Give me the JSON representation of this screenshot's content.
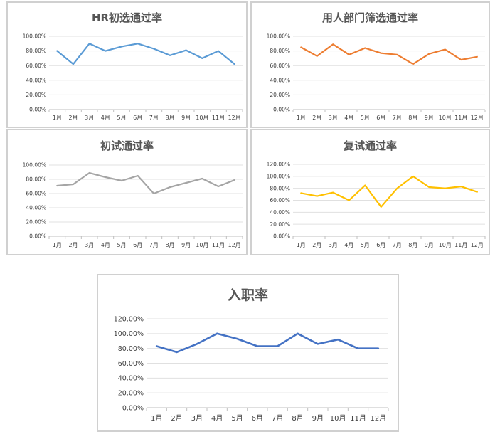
{
  "chart_data": [
    {
      "type": "line",
      "title": "HR初选通过率",
      "categories": [
        "1月",
        "2月",
        "3月",
        "4月",
        "5月",
        "6月",
        "7月",
        "8月",
        "9月",
        "10月",
        "11月",
        "12月"
      ],
      "series": [
        {
          "values": [
            80,
            62,
            90,
            80,
            86,
            90,
            83,
            74,
            81,
            70,
            80,
            62
          ]
        }
      ],
      "yticks": [
        "0.00%",
        "20.00%",
        "40.00%",
        "60.00%",
        "80.00%",
        "100.00%"
      ],
      "ylim": [
        0,
        100
      ],
      "grid": true,
      "color": "#5b9bd5"
    },
    {
      "type": "line",
      "title": "用人部门筛选通过率",
      "categories": [
        "1月",
        "2月",
        "3月",
        "4月",
        "5月",
        "6月",
        "7月",
        "8月",
        "9月",
        "10月",
        "11月",
        "12月"
      ],
      "series": [
        {
          "values": [
            85,
            73,
            89,
            75,
            84,
            77,
            75,
            62,
            76,
            82,
            68,
            72
          ]
        }
      ],
      "yticks": [
        "0.00%",
        "20.00%",
        "40.00%",
        "60.00%",
        "80.00%",
        "100.00%"
      ],
      "ylim": [
        0,
        100
      ],
      "grid": true,
      "color": "#ed7d31"
    },
    {
      "type": "line",
      "title": "初试通过率",
      "categories": [
        "1月",
        "2月",
        "3月",
        "4月",
        "5月",
        "6月",
        "7月",
        "8月",
        "9月",
        "10月",
        "11月",
        "12月"
      ],
      "series": [
        {
          "values": [
            71,
            73,
            89,
            83,
            78,
            85,
            60,
            69,
            75,
            81,
            70,
            79
          ]
        }
      ],
      "yticks": [
        "0.00%",
        "20.00%",
        "40.00%",
        "60.00%",
        "80.00%",
        "100.00%"
      ],
      "ylim": [
        0,
        100
      ],
      "grid": true,
      "color": "#a5a5a5"
    },
    {
      "type": "line",
      "title": "复试通过率",
      "categories": [
        "1月",
        "2月",
        "3月",
        "4月",
        "5月",
        "6月",
        "7月",
        "8月",
        "9月",
        "10月",
        "11月",
        "12月"
      ],
      "series": [
        {
          "values": [
            72,
            67,
            73,
            60,
            85,
            49,
            80,
            100,
            82,
            80,
            83,
            74
          ]
        }
      ],
      "yticks": [
        "0.00%",
        "20.00%",
        "40.00%",
        "60.00%",
        "80.00%",
        "100.00%",
        "120.00%"
      ],
      "ylim": [
        0,
        120
      ],
      "grid": true,
      "color": "#ffc000"
    },
    {
      "type": "line",
      "title": "入职率",
      "categories": [
        "1月",
        "2月",
        "3月",
        "4月",
        "5月",
        "6月",
        "7月",
        "8月",
        "9月",
        "10月",
        "11月",
        "12月"
      ],
      "series": [
        {
          "values": [
            83,
            75,
            86,
            100,
            93,
            83,
            83,
            100,
            86,
            92,
            80,
            80
          ]
        }
      ],
      "yticks": [
        "0.00%",
        "20.00%",
        "40.00%",
        "60.00%",
        "80.00%",
        "100.00%",
        "120.00%"
      ],
      "ylim": [
        0,
        120
      ],
      "grid": true,
      "color": "#4472c4"
    }
  ]
}
